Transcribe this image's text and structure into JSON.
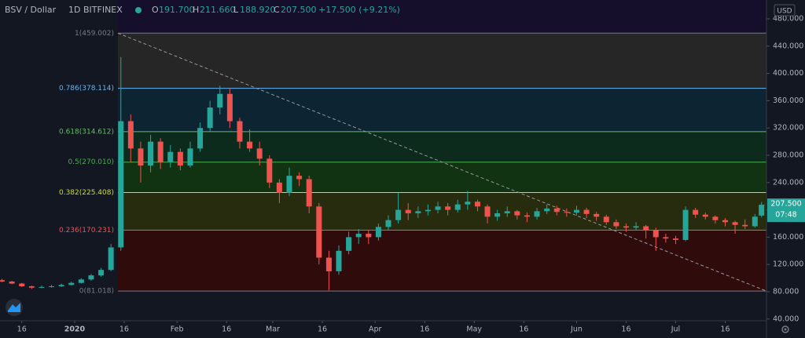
{
  "chart_data": {
    "type": "candlestick",
    "header": {
      "symbol": "BSV / Dollar",
      "interval": "1D",
      "exchange": "BITFINEX",
      "o_key": "O",
      "open": "191.700",
      "h_key": "H",
      "high": "211.660",
      "l_key": "L",
      "low": "188.920",
      "c_key": "C",
      "close": "207.500",
      "change": "+17.500 (+9.21%)"
    },
    "currency": "USD",
    "price_label": "207.500",
    "countdown": "07:48",
    "x": [
      -22,
      -19,
      -16,
      -13,
      -10,
      -7,
      -4,
      -1,
      2,
      5,
      8,
      11,
      14,
      17,
      20,
      23,
      26,
      29,
      32,
      35,
      38,
      41,
      44,
      47,
      50,
      53,
      56,
      59,
      62,
      65,
      68,
      71,
      74,
      77,
      80,
      83,
      86,
      89,
      92,
      95,
      98,
      101,
      104,
      107,
      110,
      113,
      116,
      119,
      122,
      125,
      128,
      131,
      134,
      137,
      140,
      143,
      146,
      149,
      152,
      155,
      158,
      161,
      164,
      167,
      170,
      173,
      176,
      179,
      182,
      185,
      188,
      191,
      194,
      197,
      200,
      203,
      206,
      208
    ],
    "open": [
      97,
      95,
      92,
      88,
      86,
      87,
      88,
      90,
      93,
      98,
      104,
      112,
      145,
      330,
      290,
      265,
      300,
      270,
      285,
      265,
      290,
      320,
      350,
      370,
      330,
      300,
      290,
      275,
      240,
      225,
      250,
      245,
      205,
      130,
      110,
      140,
      160,
      165,
      160,
      175,
      185,
      200,
      195,
      198,
      200,
      205,
      200,
      208,
      212,
      205,
      190,
      195,
      198,
      192,
      190,
      198,
      202,
      197,
      196,
      200,
      194,
      190,
      182,
      176,
      174,
      176,
      170,
      160,
      158,
      156,
      200,
      193,
      190,
      185,
      182,
      178,
      176,
      191.7
    ],
    "high": [
      99,
      96,
      93,
      89,
      89,
      90,
      92,
      95,
      100,
      106,
      115,
      150,
      424,
      340,
      300,
      310,
      305,
      295,
      290,
      300,
      328,
      360,
      382,
      378,
      335,
      318,
      300,
      280,
      245,
      262,
      255,
      250,
      210,
      140,
      148,
      168,
      172,
      170,
      180,
      192,
      225,
      210,
      205,
      208,
      212,
      210,
      215,
      228,
      215,
      208,
      200,
      205,
      200,
      196,
      203,
      208,
      206,
      202,
      206,
      203,
      197,
      193,
      186,
      180,
      182,
      178,
      174,
      165,
      162,
      205,
      203,
      196,
      192,
      188,
      184,
      186,
      194,
      211.66
    ],
    "low": [
      94,
      91,
      87,
      84,
      85,
      86,
      87,
      89,
      92,
      96,
      102,
      110,
      140,
      270,
      240,
      255,
      260,
      262,
      258,
      262,
      285,
      315,
      340,
      320,
      290,
      285,
      265,
      232,
      210,
      220,
      235,
      195,
      120,
      82,
      105,
      135,
      150,
      150,
      155,
      170,
      180,
      185,
      188,
      192,
      195,
      192,
      196,
      200,
      198,
      180,
      184,
      190,
      186,
      182,
      186,
      194,
      192,
      190,
      192,
      188,
      184,
      178,
      172,
      168,
      170,
      158,
      140,
      152,
      150,
      154,
      188,
      186,
      180,
      176,
      165,
      172,
      174,
      188.92
    ],
    "close": [
      95,
      92,
      88,
      86,
      87,
      88,
      90,
      93,
      98,
      104,
      112,
      145,
      330,
      290,
      265,
      300,
      270,
      285,
      265,
      290,
      320,
      350,
      370,
      330,
      300,
      290,
      275,
      240,
      225,
      250,
      245,
      205,
      130,
      110,
      140,
      160,
      165,
      160,
      175,
      185,
      200,
      195,
      198,
      200,
      205,
      200,
      208,
      212,
      205,
      190,
      195,
      198,
      192,
      190,
      198,
      202,
      197,
      196,
      200,
      194,
      190,
      182,
      176,
      174,
      176,
      170,
      160,
      158,
      156,
      200,
      193,
      190,
      185,
      182,
      178,
      176,
      190,
      207.5
    ],
    "up_color": "#26a69a",
    "down_color": "#ef5350",
    "xlim": [
      -22.6,
      209.5
    ],
    "xticks": [
      {
        "value": -16,
        "label": "16"
      },
      {
        "value": 0,
        "label": "2020"
      },
      {
        "value": 15,
        "label": "16"
      },
      {
        "value": 31,
        "label": "Feb"
      },
      {
        "value": 46,
        "label": "16"
      },
      {
        "value": 60,
        "label": "Mar"
      },
      {
        "value": 75,
        "label": "16"
      },
      {
        "value": 91,
        "label": "Apr"
      },
      {
        "value": 106,
        "label": "16"
      },
      {
        "value": 121,
        "label": "May"
      },
      {
        "value": 136,
        "label": "16"
      },
      {
        "value": 152,
        "label": "Jun"
      },
      {
        "value": 167,
        "label": "16"
      },
      {
        "value": 182,
        "label": "Jul"
      },
      {
        "value": 197,
        "label": "16"
      }
    ],
    "ylim": [
      37.5,
      507.6
    ],
    "yticks": [
      {
        "value": 40,
        "label": "40.000"
      },
      {
        "value": 80,
        "label": "80.000"
      },
      {
        "value": 120,
        "label": "120.000"
      },
      {
        "value": 160,
        "label": "160.000"
      },
      {
        "value": 200,
        "label": "200.000"
      },
      {
        "value": 240,
        "label": "240.000"
      },
      {
        "value": 280,
        "label": "280.000"
      },
      {
        "value": 320,
        "label": "320.000"
      },
      {
        "value": 360,
        "label": "360.000"
      },
      {
        "value": 400,
        "label": "400.000"
      },
      {
        "value": 440,
        "label": "440.000"
      },
      {
        "value": 480,
        "label": "480.000"
      }
    ],
    "fib_levels": [
      {
        "value": 459.002,
        "label": "1(459.002)",
        "color": "#787b86",
        "fill": "#262626"
      },
      {
        "value": 378.114,
        "label": "0.786(378.114)",
        "color": "#64b5f6",
        "fill": "#0d2433"
      },
      {
        "value": 314.612,
        "label": "0.618(314.612)",
        "color": "#66bb6a",
        "fill": "#0c2b1c"
      },
      {
        "value": 270.01,
        "label": "0.5(270.010)",
        "color": "#4caf50",
        "fill": "#123312"
      },
      {
        "value": 225.408,
        "label": "0.382(225.408)",
        "color": "#cddc39",
        "fill": "#272c0e"
      },
      {
        "value": 170.231,
        "label": "0.236(170.231)",
        "color": "#ef5350",
        "fill": "#300b0c"
      },
      {
        "value": 81.018,
        "label": "0(81.018)",
        "color": "#787b86",
        "fill": "#300b0c"
      }
    ]
  }
}
